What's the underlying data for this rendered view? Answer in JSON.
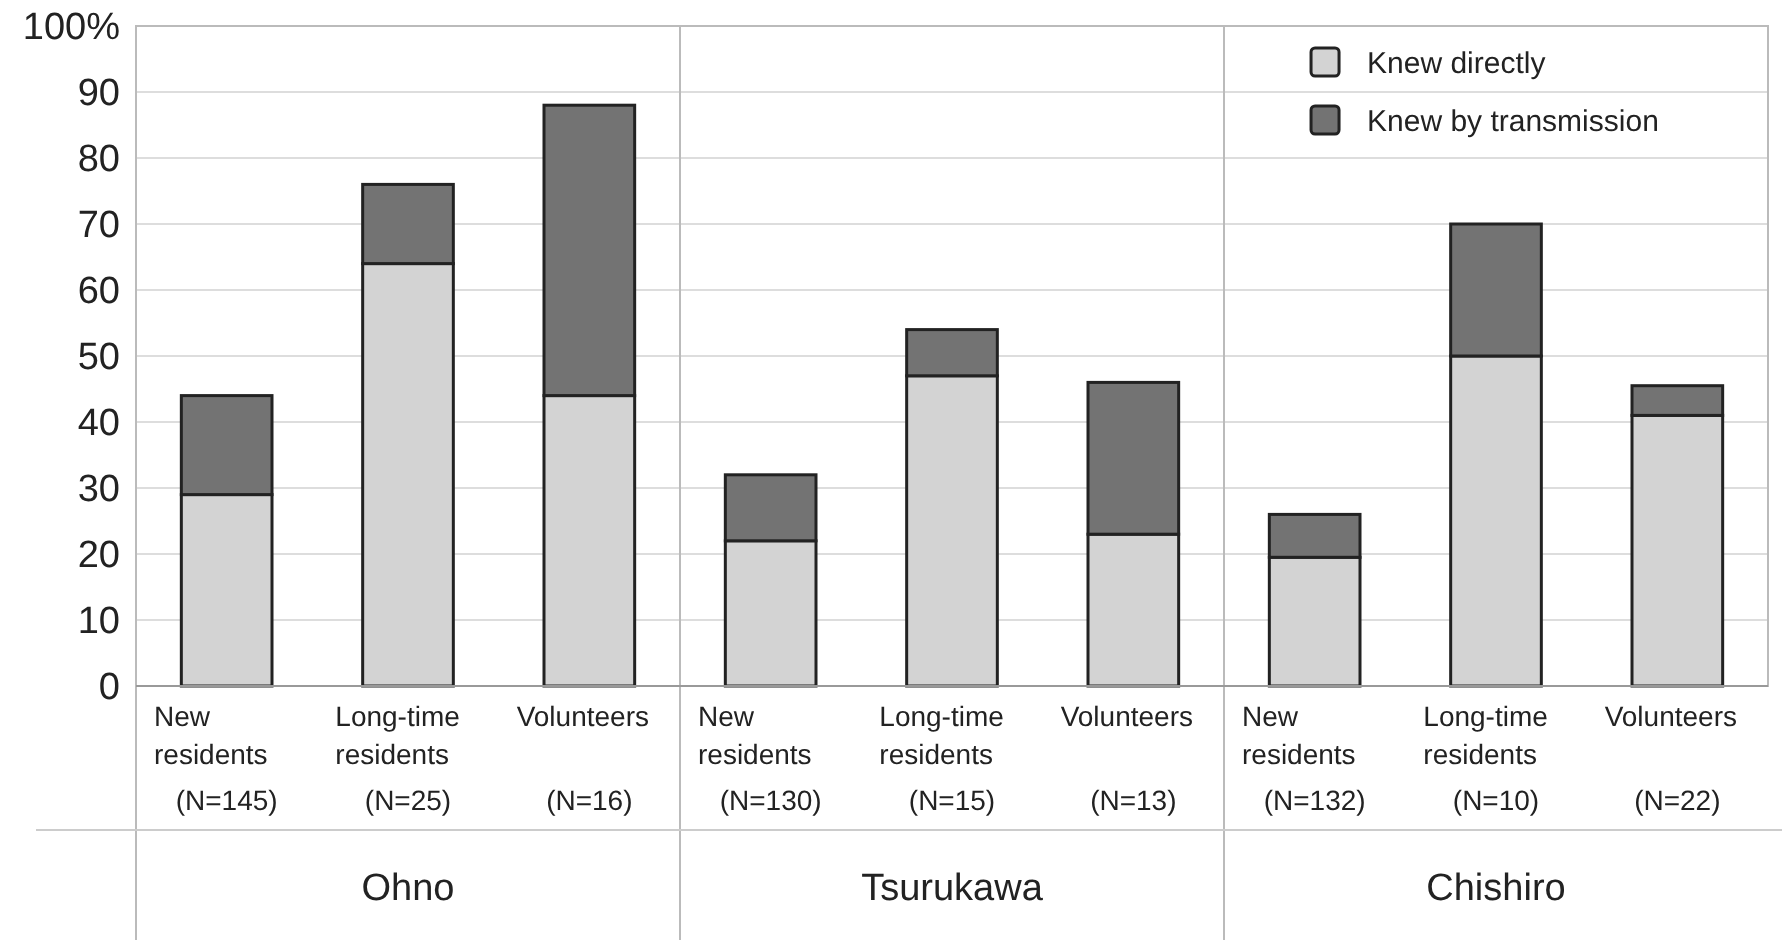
{
  "chart_data": {
    "type": "bar",
    "stacked": true,
    "categories": [
      "New residents\n(N=145)",
      "Long-time residents\n(N=25)",
      "Volunteers\n(N=16)",
      "New residents\n(N=130)",
      "Long-time residents\n(N=15)",
      "Volunteers\n(N=13)",
      "New residents\n(N=132)",
      "Long-time residents\n(N=10)",
      "Volunteers\n(N=22)"
    ],
    "series": [
      {
        "name": "Knew directly",
        "color": "#d3d3d3",
        "values": [
          29,
          64,
          44,
          22,
          47,
          23,
          19.5,
          50,
          41
        ]
      },
      {
        "name": "Knew by transmission",
        "color": "#737373",
        "values": [
          15,
          12,
          44,
          10,
          7,
          23,
          6.5,
          20,
          4.5
        ]
      }
    ],
    "ylim": [
      0,
      100
    ],
    "yticks": [
      0,
      10,
      20,
      30,
      40,
      50,
      60,
      70,
      80,
      90,
      {
        "value": 100,
        "label": "100%"
      }
    ],
    "grid": "y",
    "legend": "top right",
    "annotations": [
      "Ohno",
      "Tsurukawa",
      "Chishiro"
    ]
  }
}
